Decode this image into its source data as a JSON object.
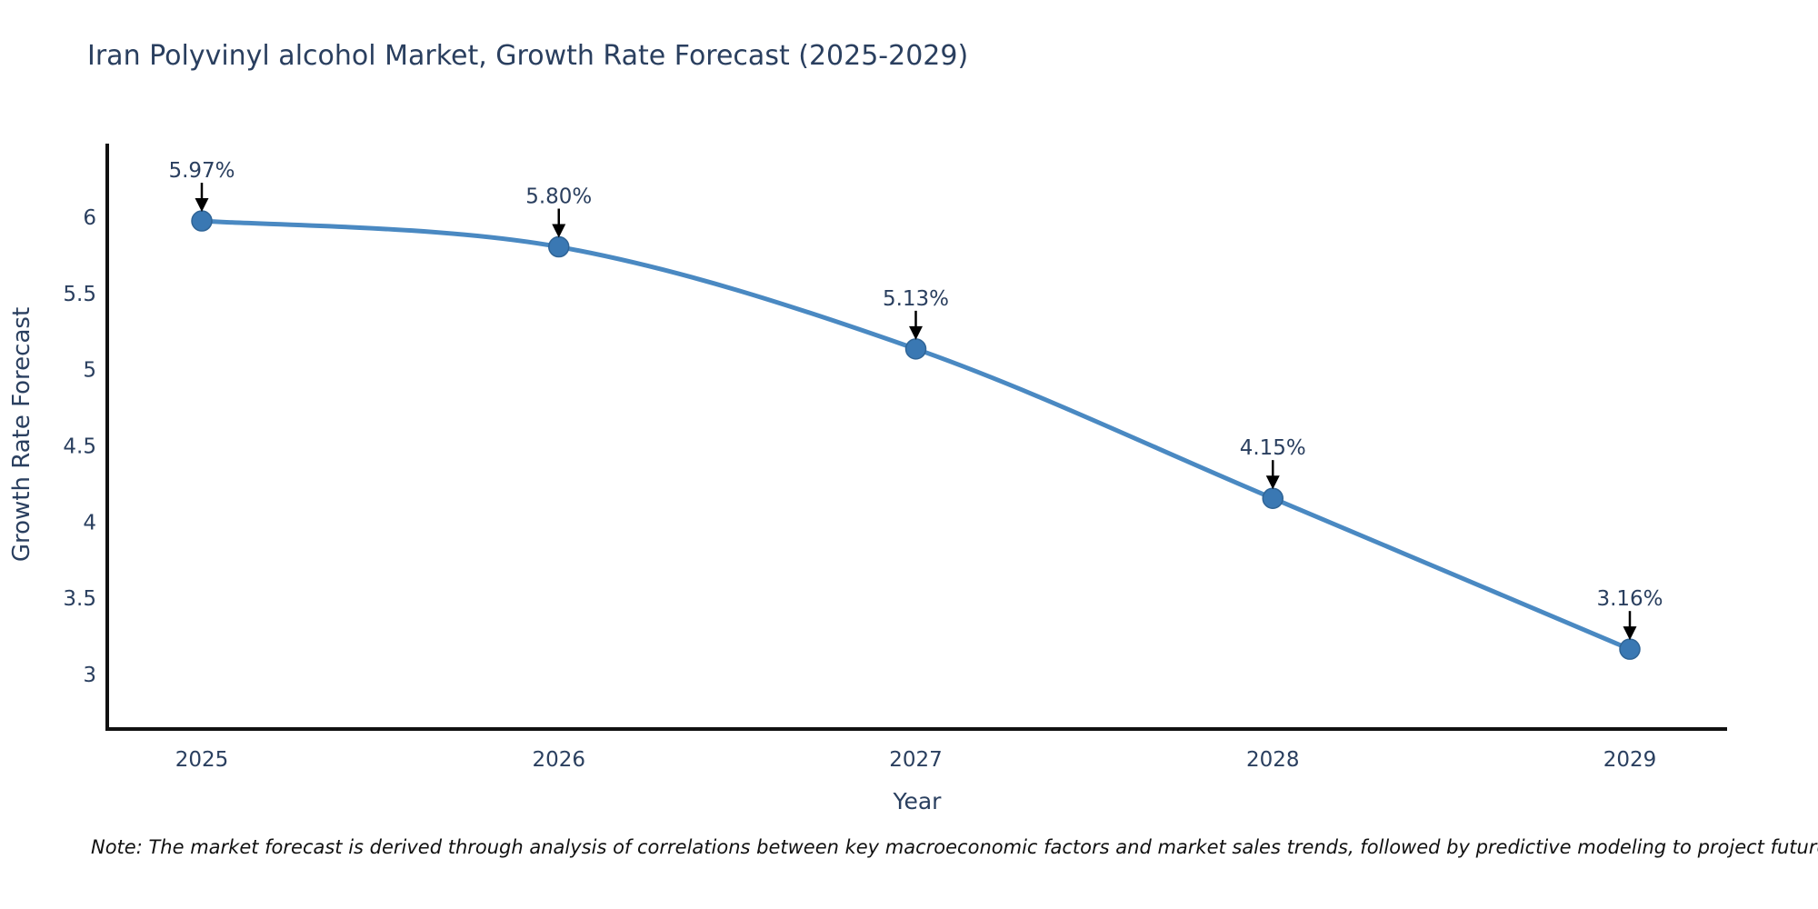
{
  "chart_data": {
    "type": "line",
    "title": "Iran Polyvinyl alcohol Market, Growth Rate Forecast (2025-2029)",
    "xlabel": "Year",
    "ylabel": "Growth Rate Forecast",
    "x": [
      2025,
      2026,
      2027,
      2028,
      2029
    ],
    "values": [
      5.97,
      5.8,
      5.13,
      4.15,
      3.16
    ],
    "point_labels": [
      "5.97%",
      "5.80%",
      "5.13%",
      "4.15%",
      "3.16%"
    ],
    "yticks": [
      3,
      3.5,
      4,
      4.5,
      5,
      5.5,
      6
    ],
    "xticks": [
      "2025",
      "2026",
      "2027",
      "2028",
      "2029"
    ],
    "ylim": [
      2.64,
      6.48
    ],
    "grid": false,
    "legend": "none",
    "colors": {
      "line": "#4a89c2",
      "marker": "#3a78b3",
      "marker_edge": "#2f6496",
      "axis": "#111111",
      "tick_text": "#2a3f5f",
      "annotation_text": "#2a3f5f",
      "arrow": "#000000",
      "title_text": "#2a3f5f"
    }
  },
  "note": {
    "text": "Note: The market forecast is derived through analysis of correlations between key macroeconomic factors and market sales trends, followed by predictive modeling to project future sales"
  }
}
